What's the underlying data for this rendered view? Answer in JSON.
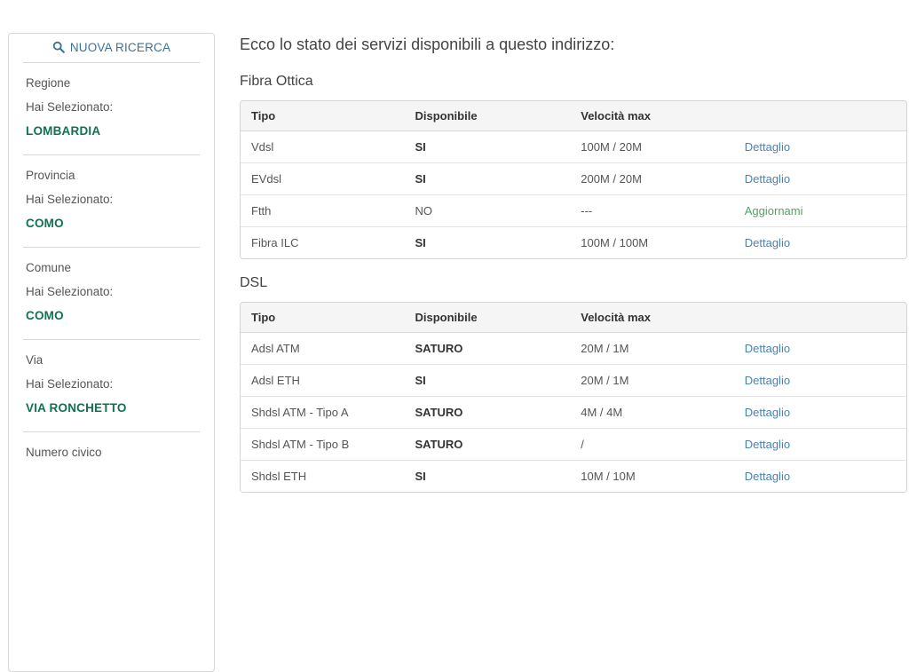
{
  "colors": {
    "search_blue": "#3d7194",
    "detail_link_blue": "#4d82ae",
    "update_link_green": "#55a065",
    "selected_value_green": "#0d7350",
    "table_header_bg": "#f5f5f5",
    "border_gray": "#d8d8d8",
    "text_gray": "#555555"
  },
  "sidebar": {
    "new_search_label": "NUOVA RICERCA",
    "search_icon": "magnifier",
    "selected_prefix": "Hai Selezionato:",
    "sections": [
      {
        "label": "Regione",
        "value": "LOMBARDIA"
      },
      {
        "label": "Provincia",
        "value": "COMO"
      },
      {
        "label": "Comune",
        "value": "COMO"
      },
      {
        "label": "Via",
        "value": "VIA RONCHETTO"
      },
      {
        "label": "Numero civico",
        "value": null
      }
    ]
  },
  "main": {
    "heading": "Ecco lo stato dei servizi disponibili a questo indirizzo:",
    "tables": [
      {
        "title": "Fibra Ottica",
        "headers": [
          "Tipo",
          "Disponibile",
          "Velocità max",
          ""
        ],
        "rows": [
          {
            "tipo": "Vdsl",
            "disponibile": "SI",
            "disponibile_bold": true,
            "velocita": "100M / 20M",
            "azione": "Dettaglio",
            "azione_style": "blue"
          },
          {
            "tipo": "EVdsl",
            "disponibile": "SI",
            "disponibile_bold": true,
            "velocita": "200M / 20M",
            "azione": "Dettaglio",
            "azione_style": "blue"
          },
          {
            "tipo": "Ftth",
            "disponibile": "NO",
            "disponibile_bold": false,
            "velocita": "---",
            "azione": "Aggiornami",
            "azione_style": "green"
          },
          {
            "tipo": "Fibra ILC",
            "disponibile": "SI",
            "disponibile_bold": true,
            "velocita": "100M / 100M",
            "azione": "Dettaglio",
            "azione_style": "blue"
          }
        ]
      },
      {
        "title": "DSL",
        "headers": [
          "Tipo",
          "Disponibile",
          "Velocità max",
          ""
        ],
        "rows": [
          {
            "tipo": "Adsl ATM",
            "disponibile": "SATURO",
            "disponibile_bold": true,
            "velocita": "20M / 1M",
            "azione": "Dettaglio",
            "azione_style": "blue"
          },
          {
            "tipo": "Adsl ETH",
            "disponibile": "SI",
            "disponibile_bold": true,
            "velocita": "20M / 1M",
            "azione": "Dettaglio",
            "azione_style": "blue"
          },
          {
            "tipo": "Shdsl ATM - Tipo A",
            "disponibile": "SATURO",
            "disponibile_bold": true,
            "velocita": "4M / 4M",
            "azione": "Dettaglio",
            "azione_style": "blue"
          },
          {
            "tipo": "Shdsl ATM - Tipo B",
            "disponibile": "SATURO",
            "disponibile_bold": true,
            "velocita": "/",
            "azione": "Dettaglio",
            "azione_style": "blue"
          },
          {
            "tipo": "Shdsl ETH",
            "disponibile": "SI",
            "disponibile_bold": true,
            "velocita": "10M / 10M",
            "azione": "Dettaglio",
            "azione_style": "blue"
          }
        ]
      }
    ]
  }
}
